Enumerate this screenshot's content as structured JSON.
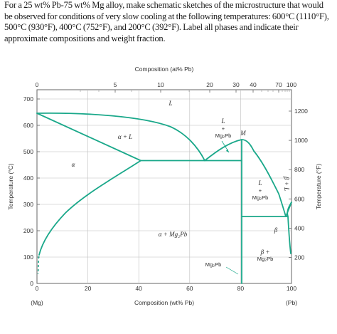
{
  "question_text": "For a 25 wt% Pb-75 wt% Mg alloy, make schematic sketches of the microstructure that would be observed for conditions of very slow cooling at the following temperatures: 600°C (1110°F), 500°C (930°F), 400°C (752°F), and 200°C (392°F). Label all phases and indicate their approximate compositions and weight fraction.",
  "diagram": {
    "top_axis_title": "Composition (at% Pb)",
    "bottom_axis_title": "Composition (wt% Pb)",
    "left_axis_title": "Temperature (°C)",
    "right_axis_title": "Temperature (°F)",
    "mg_label": "(Mg)",
    "pb_label": "(Pb)",
    "bottom_ticks": [
      "0",
      "20",
      "40",
      "60",
      "80",
      "100"
    ],
    "top_ticks": [
      "0",
      "5",
      "10",
      "20",
      "30",
      "40",
      "70",
      "100"
    ],
    "left_ticks": [
      "0",
      "100",
      "200",
      "300",
      "400",
      "500",
      "600",
      "700"
    ],
    "right_ticks": [
      "200",
      "400",
      "600",
      "800",
      "1000",
      "1200"
    ],
    "regions": {
      "liquid": "L",
      "alpha": "α",
      "alpha_plus_L": "α + L",
      "L_plus_Mg2Pb_upper": "L",
      "plus1": "+",
      "Mg2Pb_a": "Mg₂Pb",
      "M_label": "M",
      "L_right": "L",
      "plus2": "+",
      "Mg2Pb_b": "Mg₂Pb",
      "beta_L": "β + L",
      "alpha_plus_Mg2Pb": "α + Mg₂Pb",
      "beta_plus_Mg2Pb": "β +",
      "Mg2Pb_c": "Mg₂Pb",
      "beta": "β",
      "Mg2Pb_d": "Mg₂Pb"
    },
    "colors": {
      "phase_line": "#1aa88a",
      "grid": "#b8b8b8",
      "frame": "#666666"
    }
  }
}
